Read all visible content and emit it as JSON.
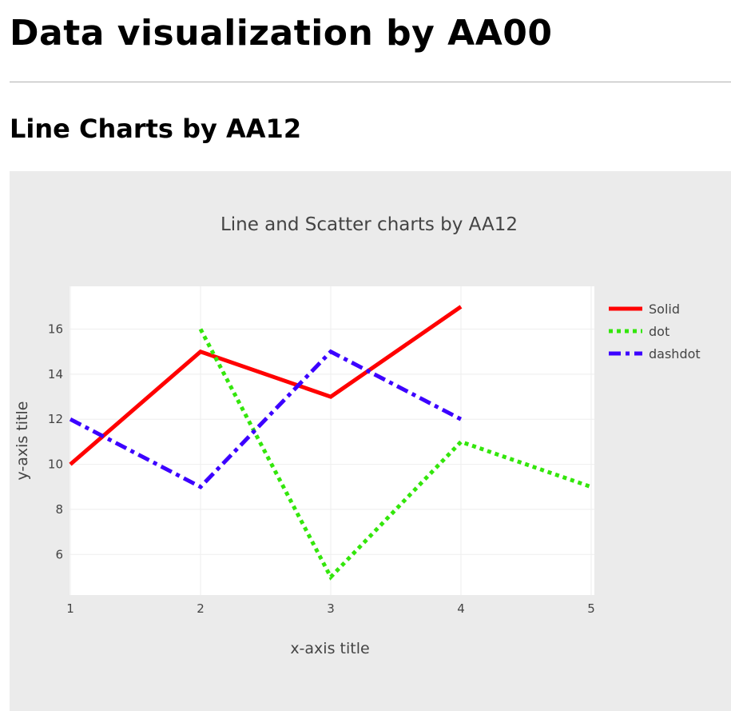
{
  "page": {
    "heading": "Data visualization by AA00",
    "section_heading": "Line Charts by AA12"
  },
  "chart_data": {
    "type": "line",
    "title": "Line and Scatter charts by AA12",
    "xlabel": "x-axis title",
    "ylabel": "y-axis title",
    "xlim": [
      1,
      5
    ],
    "ylim": [
      4.2,
      17.9
    ],
    "x_ticks": [
      1,
      2,
      3,
      4,
      5
    ],
    "y_ticks": [
      6,
      8,
      10,
      12,
      14,
      16
    ],
    "grid": true,
    "legend_position": "right",
    "series": [
      {
        "name": "Solid",
        "x": [
          1,
          2,
          3,
          4
        ],
        "y": [
          10,
          15,
          13,
          17
        ],
        "color": "#ff0000",
        "dash": "solid"
      },
      {
        "name": "dot",
        "x": [
          2,
          3,
          4,
          5
        ],
        "y": [
          16,
          5,
          11,
          9
        ],
        "color": "#33e60b",
        "dash": "dot"
      },
      {
        "name": "dashdot",
        "x": [
          1,
          2,
          3,
          4
        ],
        "y": [
          12,
          9,
          15,
          12
        ],
        "color": "#3c00ff",
        "dash": "dashdot"
      }
    ]
  }
}
